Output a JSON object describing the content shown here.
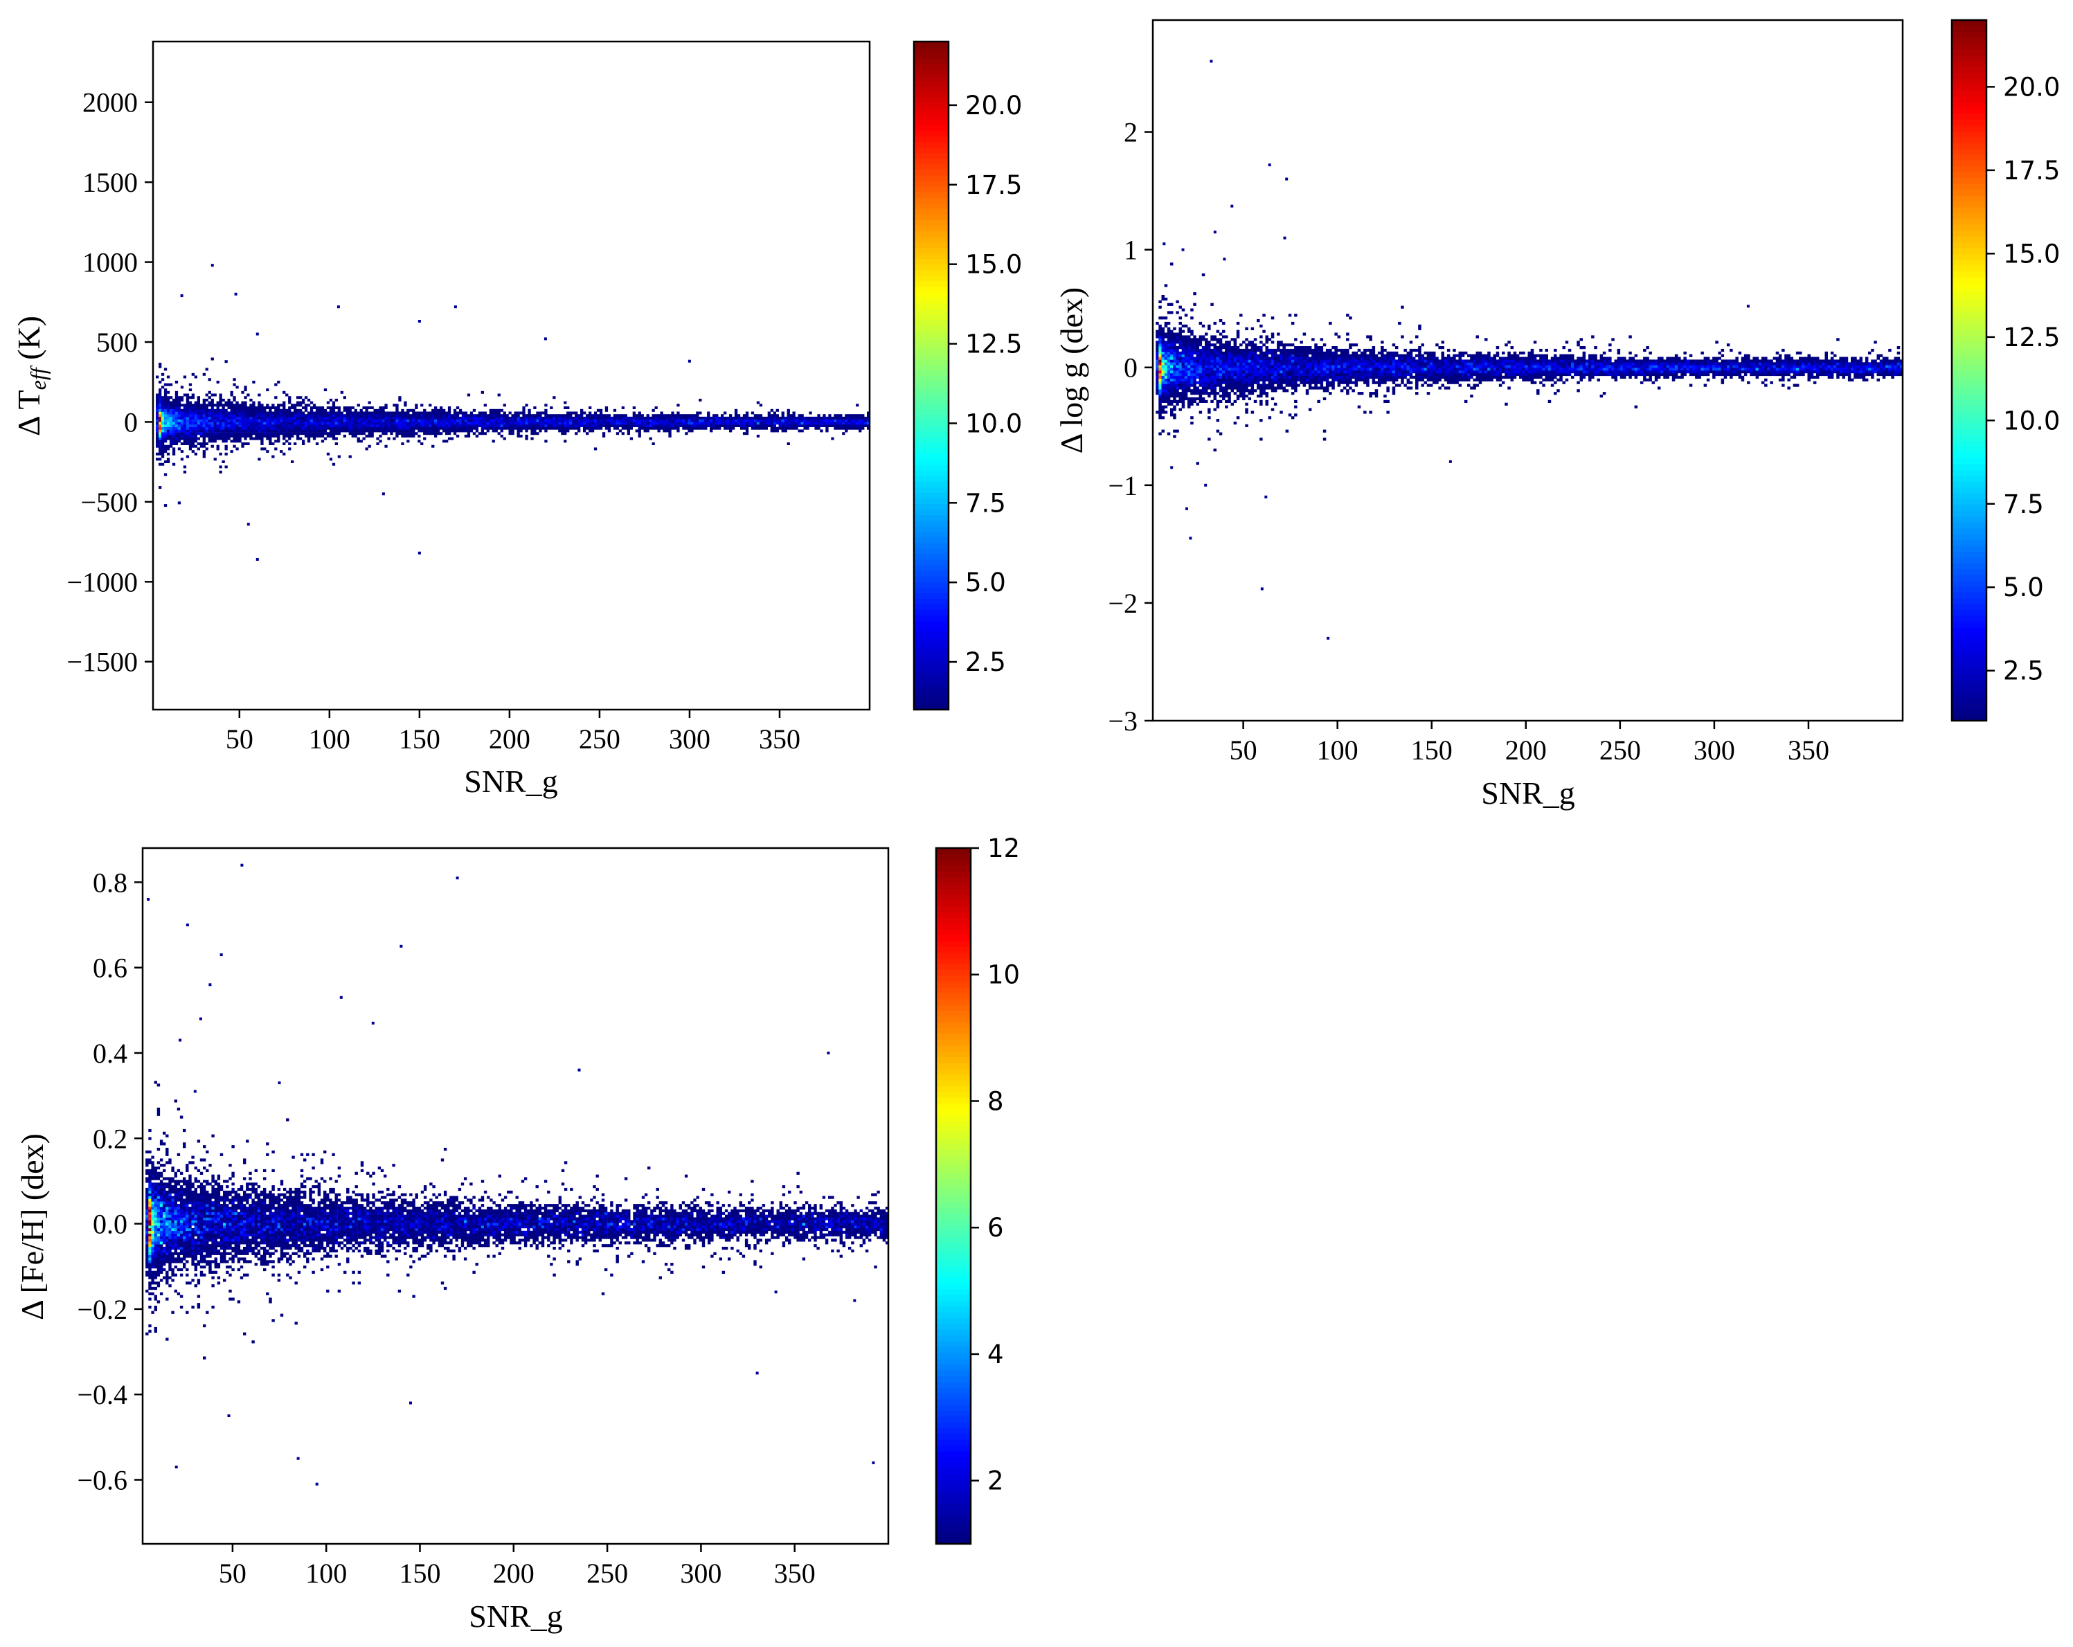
{
  "figure": {
    "panels": [
      {
        "id": "teff",
        "ylabel_prefix": "Δ T",
        "ylabel_sub": "eff",
        "ylabel_suffix": " (K)",
        "xlabel": "SNR_g",
        "xticks": [
          "50",
          "100",
          "150",
          "200",
          "250",
          "300",
          "350"
        ],
        "yticks": [
          "−1500",
          "−1000",
          "−500",
          "0",
          "500",
          "1000",
          "1500",
          "2000"
        ],
        "cbar_ticks": [
          "2.5",
          "5.0",
          "7.5",
          "10.0",
          "12.5",
          "15.0",
          "17.5",
          "20.0"
        ]
      },
      {
        "id": "logg",
        "ylabel": "Δ log g (dex)",
        "xlabel": "SNR_g",
        "xticks": [
          "50",
          "100",
          "150",
          "200",
          "250",
          "300",
          "350"
        ],
        "yticks": [
          "−3",
          "−2",
          "−1",
          "0",
          "1",
          "2"
        ],
        "cbar_ticks": [
          "2.5",
          "5.0",
          "7.5",
          "10.0",
          "12.5",
          "15.0",
          "17.5",
          "20.0"
        ]
      },
      {
        "id": "feh",
        "ylabel": "Δ [Fe/H] (dex)",
        "xlabel": "SNR_g",
        "xticks": [
          "50",
          "100",
          "150",
          "200",
          "250",
          "300",
          "350"
        ],
        "yticks": [
          "−0.6",
          "−0.4",
          "−0.2",
          "0.0",
          "0.2",
          "0.4",
          "0.6",
          "0.8"
        ],
        "cbar_ticks": [
          "2",
          "4",
          "6",
          "8",
          "10",
          "12"
        ]
      }
    ]
  },
  "chart_data": [
    {
      "type": "heatmap",
      "title": "",
      "xlabel": "SNR_g",
      "ylabel": "Δ T_eff (K)",
      "xlim": [
        2,
        400
      ],
      "ylim": [
        -1800,
        2380
      ],
      "x_ticks": [
        50,
        100,
        150,
        200,
        250,
        300,
        350
      ],
      "y_ticks": [
        -1500,
        -1000,
        -500,
        0,
        500,
        1000,
        1500,
        2000
      ],
      "colorbar": {
        "colormap": "jet",
        "range": [
          1,
          22
        ],
        "ticks": [
          2.5,
          5.0,
          7.5,
          10.0,
          12.5,
          15.0,
          17.5,
          20.0
        ]
      },
      "density_ridge": {
        "center": 0,
        "peak_x": 45,
        "peak_count": 14,
        "spread_at_snr": [
          [
            10,
            110
          ],
          [
            100,
            70
          ],
          [
            200,
            45
          ],
          [
            300,
            35
          ],
          [
            400,
            30
          ]
        ]
      },
      "outliers": [
        [
          35,
          980
        ],
        [
          48,
          800
        ],
        [
          60,
          550
        ],
        [
          105,
          720
        ],
        [
          150,
          630
        ],
        [
          170,
          720
        ],
        [
          220,
          520
        ],
        [
          300,
          380
        ],
        [
          55,
          -640
        ],
        [
          60,
          -860
        ],
        [
          150,
          -820
        ],
        [
          130,
          -450
        ],
        [
          18,
          790
        ]
      ],
      "grid": false,
      "legend": "none"
    },
    {
      "type": "heatmap",
      "title": "",
      "xlabel": "SNR_g",
      "ylabel": "Δ log g (dex)",
      "xlim": [
        2,
        400
      ],
      "ylim": [
        -3.0,
        2.95
      ],
      "x_ticks": [
        50,
        100,
        150,
        200,
        250,
        300,
        350
      ],
      "y_ticks": [
        -3,
        -2,
        -1,
        0,
        1,
        2
      ],
      "colorbar": {
        "colormap": "jet",
        "range": [
          1,
          22
        ],
        "ticks": [
          2.5,
          5.0,
          7.5,
          10.0,
          12.5,
          15.0,
          17.5,
          20.0
        ]
      },
      "density_ridge": {
        "center": 0,
        "peak_x": 50,
        "peak_count": 14,
        "spread_at_snr": [
          [
            10,
            0.22
          ],
          [
            100,
            0.12
          ],
          [
            200,
            0.08
          ],
          [
            300,
            0.06
          ],
          [
            400,
            0.06
          ]
        ]
      },
      "outliers": [
        [
          33,
          2.6
        ],
        [
          64,
          1.72
        ],
        [
          73,
          1.6
        ],
        [
          72,
          1.1
        ],
        [
          35,
          1.15
        ],
        [
          44,
          1.37
        ],
        [
          8,
          1.05
        ],
        [
          18,
          1.0
        ],
        [
          40,
          0.92
        ],
        [
          20,
          -1.2
        ],
        [
          22,
          -1.45
        ],
        [
          60,
          -1.88
        ],
        [
          95,
          -2.3
        ],
        [
          12,
          -0.85
        ],
        [
          30,
          -1.0
        ],
        [
          62,
          -1.1
        ],
        [
          160,
          -0.8
        ],
        [
          318,
          0.52
        ]
      ],
      "grid": false,
      "legend": "none"
    },
    {
      "type": "heatmap",
      "title": "",
      "xlabel": "SNR_g",
      "ylabel": "Δ [Fe/H] (dex)",
      "xlim": [
        2,
        400
      ],
      "ylim": [
        -0.75,
        0.88
      ],
      "x_ticks": [
        50,
        100,
        150,
        200,
        250,
        300,
        350
      ],
      "y_ticks": [
        -0.6,
        -0.4,
        -0.2,
        0.0,
        0.2,
        0.4,
        0.6,
        0.8
      ],
      "colorbar": {
        "colormap": "jet",
        "range": [
          1,
          12
        ],
        "ticks": [
          2,
          4,
          6,
          8,
          10,
          12
        ]
      },
      "density_ridge": {
        "center": 0.0,
        "peak_x": 40,
        "peak_count": 8,
        "spread_at_snr": [
          [
            10,
            0.09
          ],
          [
            100,
            0.06
          ],
          [
            200,
            0.04
          ],
          [
            300,
            0.035
          ],
          [
            400,
            0.03
          ]
        ]
      },
      "outliers": [
        [
          55,
          0.84
        ],
        [
          170,
          0.81
        ],
        [
          5,
          0.76
        ],
        [
          26,
          0.7
        ],
        [
          44,
          0.63
        ],
        [
          140,
          0.65
        ],
        [
          38,
          0.56
        ],
        [
          108,
          0.53
        ],
        [
          125,
          0.47
        ],
        [
          33,
          0.48
        ],
        [
          368,
          0.4
        ],
        [
          22,
          0.43
        ],
        [
          30,
          0.31
        ],
        [
          75,
          0.33
        ],
        [
          235,
          0.36
        ],
        [
          145,
          -0.42
        ],
        [
          330,
          -0.35
        ],
        [
          20,
          -0.57
        ],
        [
          48,
          -0.45
        ],
        [
          85,
          -0.55
        ],
        [
          95,
          -0.61
        ],
        [
          392,
          -0.56
        ],
        [
          382,
          -0.18
        ],
        [
          340,
          -0.16
        ]
      ],
      "grid": false,
      "legend": "none"
    }
  ]
}
